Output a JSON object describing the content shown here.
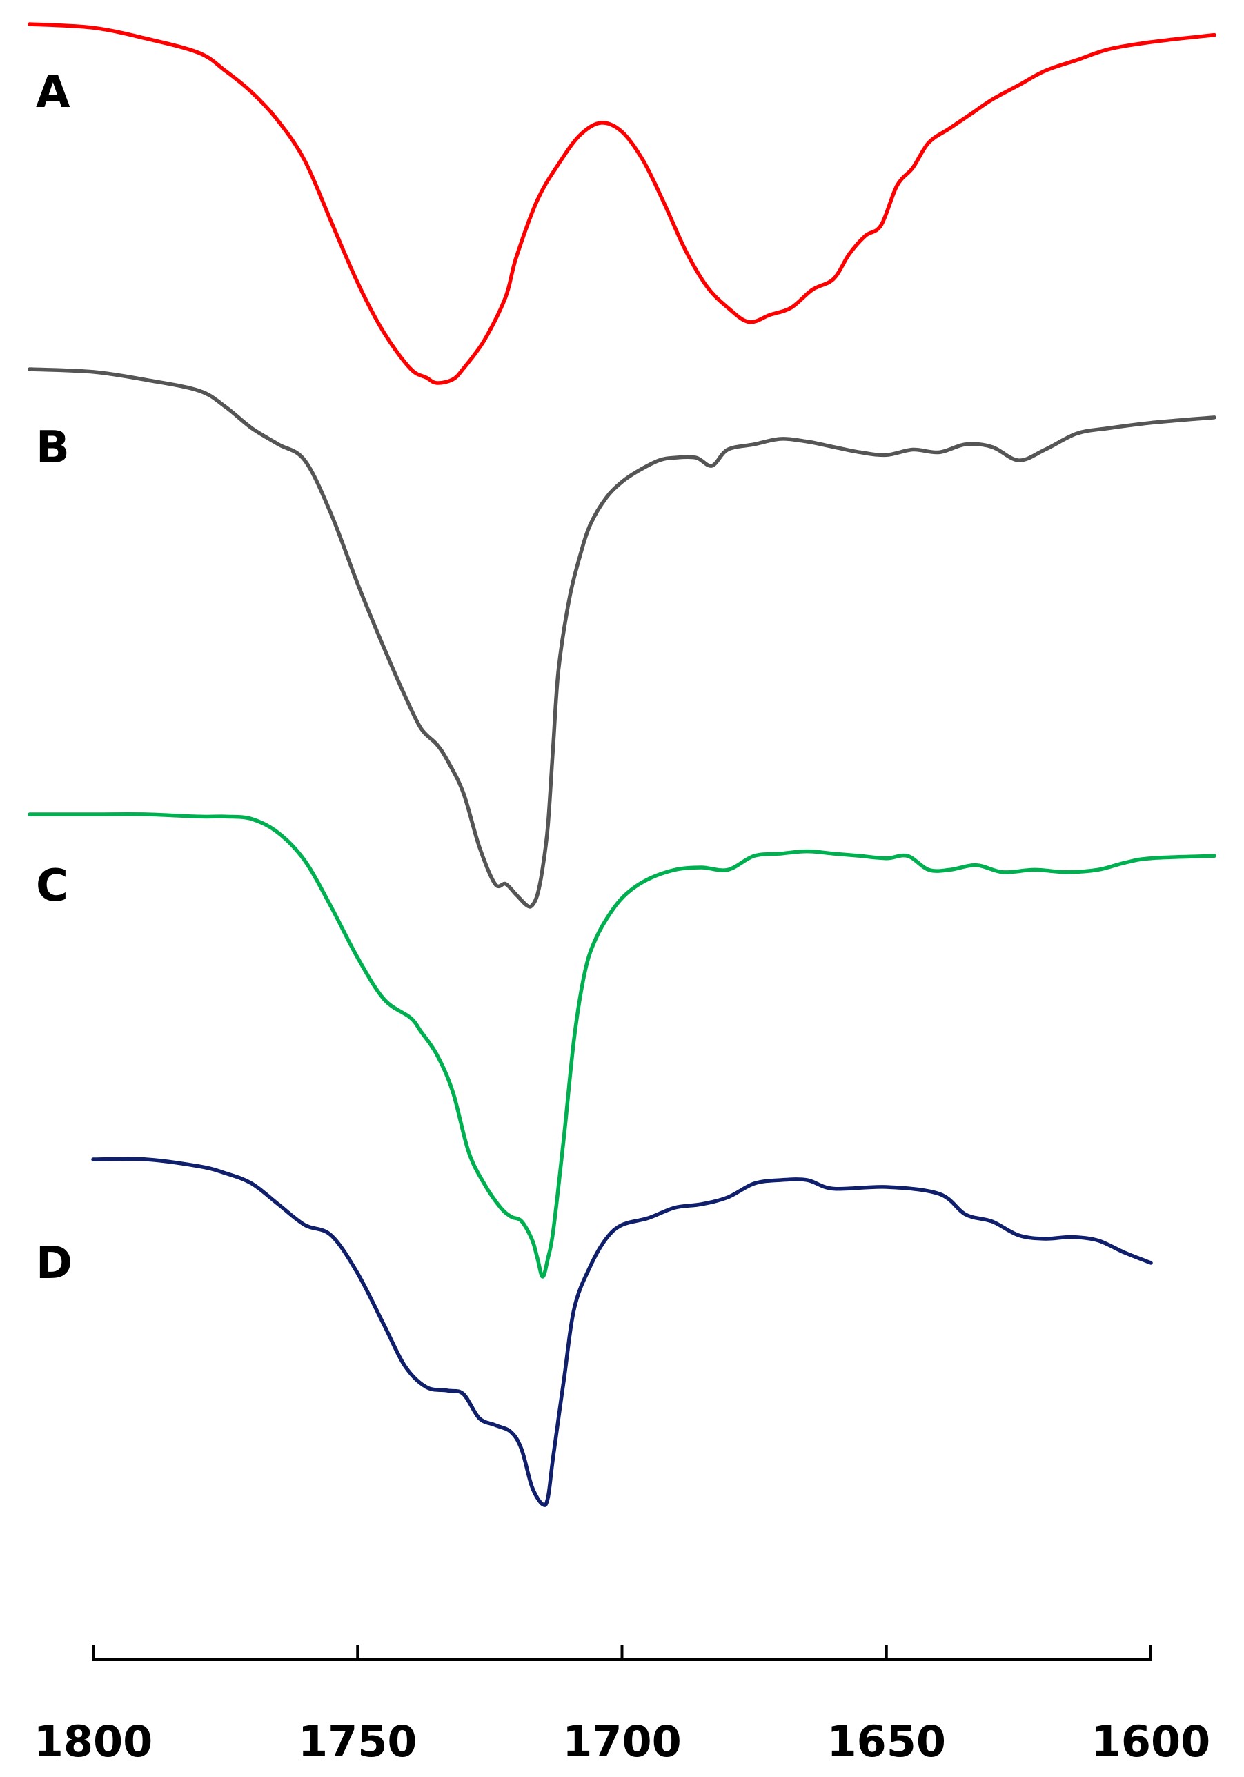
{
  "chart_data": {
    "type": "line",
    "title": "",
    "xlabel": "",
    "ylabel": "",
    "xlim": [
      1800,
      1600
    ],
    "x_reversed": true,
    "xticks": [
      1800,
      1750,
      1700,
      1650,
      1600
    ],
    "y_axis_visible": false,
    "grid": false,
    "legend": "none",
    "series": [
      {
        "name": "A",
        "color": "#ff0000",
        "x": [
          1812,
          1800,
          1790,
          1780,
          1775,
          1770,
          1765,
          1760,
          1755,
          1750,
          1745,
          1740,
          1737,
          1735,
          1732,
          1730,
          1726,
          1722,
          1720,
          1716,
          1712,
          1708,
          1704,
          1700,
          1696,
          1692,
          1688,
          1684,
          1680,
          1676,
          1672,
          1668,
          1664,
          1660,
          1657,
          1654,
          1651,
          1648,
          1645,
          1642,
          1638,
          1634,
          1630,
          1625,
          1620,
          1614,
          1608,
          1600,
          1588
        ],
        "y": [
          0.0,
          0.01,
          0.04,
          0.08,
          0.13,
          0.19,
          0.27,
          0.38,
          0.55,
          0.72,
          0.86,
          0.96,
          0.985,
          1.0,
          0.99,
          0.96,
          0.88,
          0.76,
          0.65,
          0.49,
          0.39,
          0.31,
          0.275,
          0.3,
          0.38,
          0.5,
          0.63,
          0.73,
          0.79,
          0.83,
          0.81,
          0.79,
          0.74,
          0.71,
          0.64,
          0.59,
          0.56,
          0.45,
          0.4,
          0.33,
          0.29,
          0.25,
          0.21,
          0.17,
          0.13,
          0.1,
          0.07,
          0.05,
          0.03
        ]
      },
      {
        "name": "B",
        "color": "#555555",
        "x": [
          1812,
          1800,
          1790,
          1780,
          1775,
          1770,
          1765,
          1760,
          1755,
          1750,
          1745,
          1741,
          1738,
          1735,
          1733,
          1730,
          1727,
          1724,
          1722,
          1720,
          1718,
          1717,
          1716,
          1715,
          1714,
          1713,
          1712,
          1710,
          1708,
          1706,
          1703,
          1700,
          1697,
          1693,
          1690,
          1686,
          1683,
          1680,
          1675,
          1670,
          1665,
          1660,
          1655,
          1650,
          1645,
          1640,
          1635,
          1630,
          1625,
          1620,
          1614,
          1608,
          1600,
          1588
        ],
        "y": [
          0.0,
          0.005,
          0.02,
          0.04,
          0.07,
          0.11,
          0.14,
          0.17,
          0.27,
          0.4,
          0.52,
          0.61,
          0.67,
          0.7,
          0.73,
          0.79,
          0.89,
          0.96,
          0.96,
          0.98,
          1.0,
          1.0,
          0.98,
          0.93,
          0.85,
          0.7,
          0.56,
          0.43,
          0.35,
          0.29,
          0.24,
          0.21,
          0.19,
          0.17,
          0.165,
          0.165,
          0.18,
          0.15,
          0.14,
          0.13,
          0.135,
          0.145,
          0.155,
          0.16,
          0.15,
          0.155,
          0.14,
          0.145,
          0.17,
          0.15,
          0.12,
          0.11,
          0.1,
          0.09
        ]
      },
      {
        "name": "C",
        "color": "#00b050",
        "x": [
          1812,
          1800,
          1790,
          1780,
          1775,
          1770,
          1765,
          1760,
          1755,
          1750,
          1745,
          1740,
          1738,
          1735,
          1732,
          1729,
          1726,
          1723,
          1721,
          1719,
          1717,
          1716,
          1715,
          1714,
          1713,
          1711,
          1709,
          1707,
          1705,
          1702,
          1699,
          1695,
          1690,
          1685,
          1680,
          1675,
          1670,
          1665,
          1660,
          1655,
          1650,
          1646,
          1642,
          1638,
          1633,
          1628,
          1622,
          1616,
          1610,
          1605,
          1600,
          1588
        ],
        "y": [
          0.0,
          0.0,
          0.0,
          0.005,
          0.005,
          0.01,
          0.04,
          0.1,
          0.2,
          0.31,
          0.4,
          0.44,
          0.47,
          0.52,
          0.6,
          0.73,
          0.8,
          0.85,
          0.87,
          0.88,
          0.92,
          0.96,
          1.0,
          0.96,
          0.9,
          0.7,
          0.48,
          0.34,
          0.27,
          0.21,
          0.17,
          0.14,
          0.12,
          0.115,
          0.12,
          0.09,
          0.085,
          0.08,
          0.085,
          0.09,
          0.095,
          0.09,
          0.12,
          0.12,
          0.11,
          0.125,
          0.12,
          0.125,
          0.12,
          0.105,
          0.095,
          0.09
        ]
      },
      {
        "name": "D",
        "color": "#0f1f6b",
        "x": [
          1800,
          1790,
          1780,
          1775,
          1770,
          1765,
          1760,
          1755,
          1750,
          1745,
          1741,
          1737,
          1733,
          1730,
          1727,
          1724,
          1721,
          1719,
          1717,
          1715,
          1714,
          1713,
          1711,
          1709,
          1706,
          1703,
          1700,
          1695,
          1690,
          1685,
          1680,
          1675,
          1670,
          1665,
          1660,
          1650,
          1640,
          1635,
          1630,
          1625,
          1620,
          1615,
          1610,
          1605,
          1600
        ],
        "y": [
          0.0,
          0.0,
          0.02,
          0.04,
          0.07,
          0.13,
          0.19,
          0.22,
          0.33,
          0.48,
          0.6,
          0.66,
          0.67,
          0.68,
          0.75,
          0.77,
          0.79,
          0.84,
          0.95,
          1.0,
          0.98,
          0.86,
          0.64,
          0.43,
          0.31,
          0.23,
          0.19,
          0.17,
          0.14,
          0.13,
          0.11,
          0.07,
          0.06,
          0.06,
          0.085,
          0.08,
          0.1,
          0.16,
          0.18,
          0.22,
          0.23,
          0.225,
          0.235,
          0.27,
          0.3
        ]
      }
    ]
  }
}
